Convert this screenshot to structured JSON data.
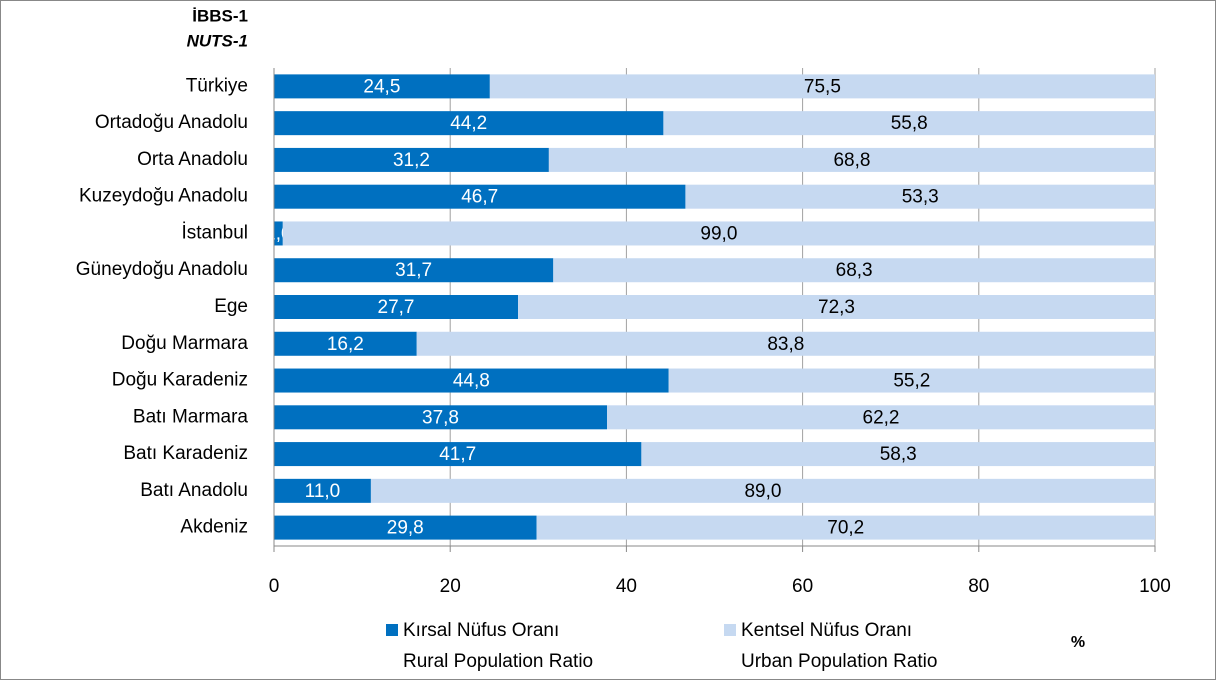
{
  "chart_data": {
    "type": "stacked_bar_horizontal",
    "y_axis_title": [
      "İBBS-1",
      "NUTS-1"
    ],
    "x_axis_label": "%",
    "categories": [
      "Türkiye",
      "Ortadoğu Anadolu",
      "Orta Anadolu",
      "Kuzeydoğu Anadolu",
      "İstanbul",
      "Güneydoğu Anadolu",
      "Ege",
      "Doğu Marmara",
      "Doğu Karadeniz",
      "Batı Marmara",
      "Batı Karadeniz",
      "Batı Anadolu",
      "Akdeniz"
    ],
    "series": [
      {
        "name": [
          "Kırsal Nüfus Oranı",
          "Rural Population Ratio"
        ],
        "color": "#0070c0",
        "label_color": "#ffffff",
        "values": [
          24.5,
          44.2,
          31.2,
          46.7,
          1.0,
          31.7,
          27.7,
          16.2,
          44.8,
          37.8,
          41.7,
          11.0,
          29.8
        ],
        "value_labels": [
          "24,5",
          "44,2",
          "31,2",
          "46,7",
          "1,0",
          "31,7",
          "27,7",
          "16,2",
          "44,8",
          "37,8",
          "41,7",
          "11,0",
          "29,8"
        ]
      },
      {
        "name": [
          "Kentsel Nüfus Oranı",
          "Urban Population Ratio"
        ],
        "color": "#c6d9f1",
        "label_color": "#000000",
        "values": [
          75.5,
          55.8,
          68.8,
          53.3,
          99.0,
          68.3,
          72.3,
          83.8,
          55.2,
          62.2,
          58.3,
          89.0,
          70.2
        ],
        "value_labels": [
          "75,5",
          "55,8",
          "68,8",
          "53,3",
          "99,0",
          "68,3",
          "72,3",
          "83,8",
          "55,2",
          "62,2",
          "58,3",
          "89,0",
          "70,2"
        ]
      }
    ],
    "xlim": [
      0,
      100
    ],
    "xticks": [
      0,
      20,
      40,
      60,
      80,
      100
    ],
    "grid": true
  }
}
